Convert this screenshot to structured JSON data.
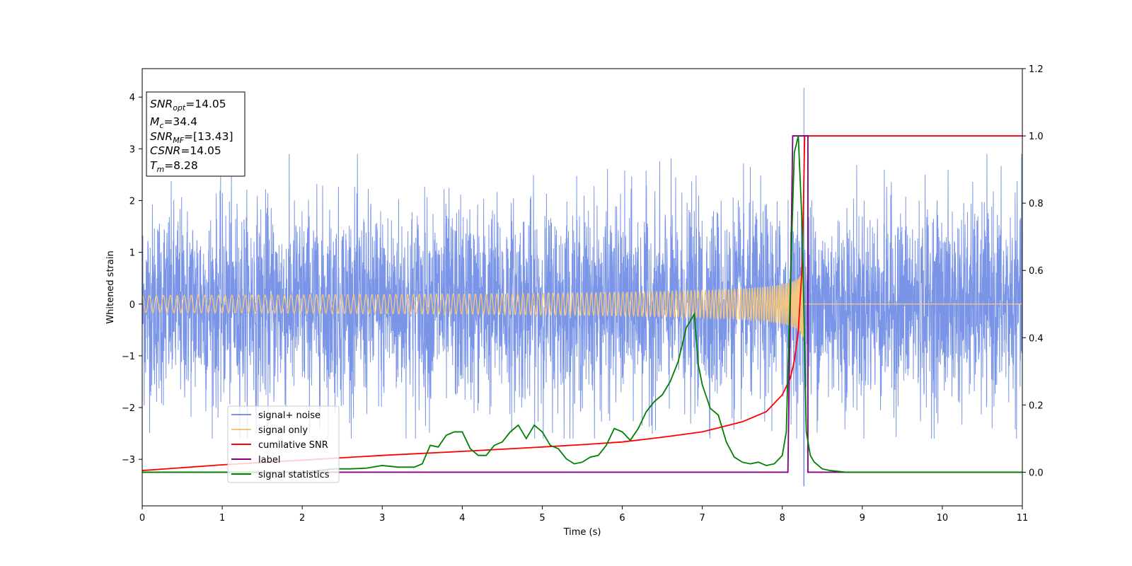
{
  "chart_data": {
    "type": "line",
    "xlabel": "Time (s)",
    "ylabel": "Whitened strain",
    "xlim": [
      0,
      11
    ],
    "ylim": [
      -3.9,
      4.55
    ],
    "y2lim": [
      -0.1,
      1.2
    ],
    "x_ticks": [
      0,
      1,
      2,
      3,
      4,
      5,
      6,
      7,
      8,
      9,
      10,
      11
    ],
    "y_ticks": [
      -3,
      -2,
      -1,
      0,
      1,
      2,
      3,
      4
    ],
    "y2_ticks": [
      0.0,
      0.2,
      0.4,
      0.6,
      0.8,
      1.0,
      1.2
    ],
    "grid": false,
    "legend_position": "lower-left",
    "annotation_box": {
      "lines": [
        {
          "main": "SNR",
          "sub": "opt",
          "value": "=14.05"
        },
        {
          "main": "M",
          "sub": "c",
          "value": "=34.4"
        },
        {
          "main": "SNR",
          "sub": "MF",
          "value": "=[13.43]"
        },
        {
          "main": "CSNR",
          "sub": "",
          "value": "=14.05"
        },
        {
          "main": "T",
          "sub": "m",
          "value": "=8.28"
        }
      ]
    },
    "series": [
      {
        "name": "signal+ noise",
        "color": "#7a95e8",
        "axis": "left",
        "kind": "noise",
        "amplitude_std": 0.95,
        "peak": {
          "x": 8.27,
          "ymax": 4.18,
          "ymin": -3.52
        }
      },
      {
        "name": "signal only",
        "color": "#f5c77e",
        "axis": "left",
        "kind": "chirp",
        "merger_time": 8.27,
        "peak_amplitude": 0.75
      },
      {
        "name": "cumilative SNR",
        "color": "#ff0000",
        "axis": "right",
        "x": [
          0,
          1,
          2,
          3,
          4,
          5,
          5.5,
          6,
          6.5,
          7,
          7.5,
          7.8,
          8.0,
          8.1,
          8.15,
          8.2,
          8.25,
          8.28,
          11
        ],
        "values": [
          0.005,
          0.022,
          0.036,
          0.05,
          0.062,
          0.075,
          0.082,
          0.09,
          0.104,
          0.12,
          0.15,
          0.18,
          0.23,
          0.28,
          0.33,
          0.42,
          0.62,
          1.0,
          1.0
        ]
      },
      {
        "name": "label",
        "color": "#800080",
        "axis": "right",
        "x": [
          0,
          8.07,
          8.13,
          8.32,
          8.32,
          11
        ],
        "values": [
          0,
          0,
          1,
          1,
          0,
          0
        ]
      },
      {
        "name": "signal statistics",
        "color": "#008000",
        "axis": "right",
        "x": [
          0,
          2.0,
          2.2,
          2.4,
          2.6,
          2.8,
          3.0,
          3.2,
          3.4,
          3.5,
          3.6,
          3.7,
          3.8,
          3.9,
          4.0,
          4.1,
          4.2,
          4.3,
          4.4,
          4.5,
          4.6,
          4.7,
          4.8,
          4.9,
          5.0,
          5.1,
          5.2,
          5.3,
          5.4,
          5.5,
          5.6,
          5.7,
          5.8,
          5.9,
          6.0,
          6.1,
          6.2,
          6.3,
          6.4,
          6.5,
          6.6,
          6.7,
          6.8,
          6.9,
          6.95,
          7.0,
          7.1,
          7.2,
          7.3,
          7.4,
          7.5,
          7.6,
          7.7,
          7.8,
          7.9,
          8.0,
          8.05,
          8.1,
          8.15,
          8.2,
          8.25,
          8.3,
          8.35,
          8.4,
          8.5,
          8.6,
          8.8,
          9.0,
          11
        ],
        "values": [
          0,
          0.0,
          0.005,
          0.01,
          0.01,
          0.012,
          0.02,
          0.015,
          0.015,
          0.025,
          0.08,
          0.075,
          0.11,
          0.12,
          0.12,
          0.07,
          0.05,
          0.05,
          0.08,
          0.09,
          0.12,
          0.14,
          0.1,
          0.14,
          0.12,
          0.08,
          0.07,
          0.04,
          0.025,
          0.03,
          0.045,
          0.05,
          0.08,
          0.13,
          0.12,
          0.095,
          0.13,
          0.18,
          0.21,
          0.23,
          0.27,
          0.33,
          0.43,
          0.47,
          0.32,
          0.26,
          0.19,
          0.17,
          0.09,
          0.045,
          0.03,
          0.025,
          0.03,
          0.02,
          0.025,
          0.05,
          0.12,
          0.55,
          0.95,
          1.0,
          0.72,
          0.12,
          0.05,
          0.03,
          0.01,
          0.005,
          0.0,
          0.0,
          0.0
        ]
      }
    ]
  }
}
